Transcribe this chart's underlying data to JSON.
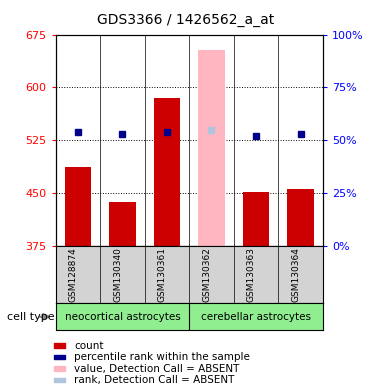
{
  "title": "GDS3366 / 1426562_a_at",
  "samples": [
    "GSM128874",
    "GSM130340",
    "GSM130361",
    "GSM130362",
    "GSM130363",
    "GSM130364"
  ],
  "values": [
    487,
    437,
    585,
    653,
    452,
    455
  ],
  "percentile_ranks": [
    54,
    53,
    54,
    55,
    52,
    53
  ],
  "absent_mask": [
    false,
    false,
    false,
    true,
    false,
    false
  ],
  "y_min": 375,
  "y_max": 675,
  "y_ticks": [
    375,
    450,
    525,
    600,
    675
  ],
  "y2_ticks": [
    0,
    25,
    50,
    75,
    100
  ],
  "bar_color_present": "#cc0000",
  "bar_color_absent": "#ffb6c1",
  "dot_color_present": "#00008B",
  "dot_color_absent": "#b0c4de",
  "bg_color": "#d3d3d3",
  "green_color": "#90EE90",
  "cell_type_labels": [
    "neocortical astrocytes",
    "cerebellar astrocytes"
  ],
  "legend_labels": [
    "count",
    "percentile rank within the sample",
    "value, Detection Call = ABSENT",
    "rank, Detection Call = ABSENT"
  ],
  "legend_colors": [
    "#cc0000",
    "#00008B",
    "#ffb6c1",
    "#b0c4de"
  ]
}
